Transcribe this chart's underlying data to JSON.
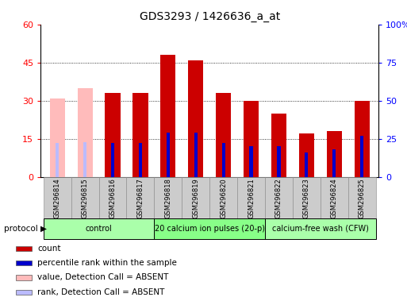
{
  "title": "GDS3293 / 1426636_a_at",
  "samples": [
    "GSM296814",
    "GSM296815",
    "GSM296816",
    "GSM296817",
    "GSM296818",
    "GSM296819",
    "GSM296820",
    "GSM296821",
    "GSM296822",
    "GSM296823",
    "GSM296824",
    "GSM296825"
  ],
  "count_values": [
    31,
    35,
    33,
    33,
    48,
    46,
    33,
    30,
    25,
    17,
    18,
    30
  ],
  "percentile_values": [
    22,
    23,
    22,
    22,
    29,
    29,
    22,
    20,
    20,
    16,
    18,
    27
  ],
  "absent_flags": [
    true,
    true,
    false,
    false,
    false,
    false,
    false,
    false,
    false,
    false,
    false,
    false
  ],
  "protocol_groups": [
    {
      "label": "control",
      "start": 0,
      "end": 3,
      "color": "#aaffaa"
    },
    {
      "label": "20 calcium ion pulses (20-p)",
      "start": 4,
      "end": 7,
      "color": "#88ff88"
    },
    {
      "label": "calcium-free wash (CFW)",
      "start": 8,
      "end": 11,
      "color": "#aaffaa"
    }
  ],
  "ylim_left": [
    0,
    60
  ],
  "ylim_right": [
    0,
    100
  ],
  "yticks_left": [
    0,
    15,
    30,
    45,
    60
  ],
  "yticks_right": [
    0,
    25,
    50,
    75,
    100
  ],
  "count_color": "#cc0000",
  "count_color_absent": "#ffbbbb",
  "percentile_color": "#0000cc",
  "percentile_color_absent": "#bbbbff",
  "bg_color": "#ffffff",
  "sample_bg": "#cccccc",
  "bar_width": 0.55,
  "pct_bar_width": 0.12
}
